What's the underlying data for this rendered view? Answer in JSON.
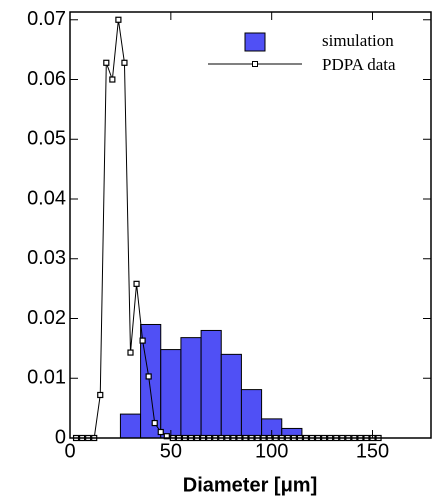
{
  "chart_data": {
    "type": "histogram",
    "xlabel": "Diameter  [μm]",
    "bins": [
      25,
      35,
      45,
      55,
      65,
      75,
      85,
      95,
      105,
      115
    ],
    "series": [
      {
        "name": "simulation",
        "color": "#5050f5",
        "values": [
          0.004,
          0.019,
          0.0148,
          0.0168,
          0.018,
          0.014,
          0.0081,
          0.0032,
          0.0016
        ]
      }
    ],
    "overlay": {
      "type": "line",
      "name": "PDPA data",
      "color": "#000000",
      "x": [
        3,
        6,
        9,
        12,
        15,
        18,
        21,
        24,
        27,
        30,
        33,
        36,
        39,
        42,
        45,
        48,
        51,
        54,
        57,
        60,
        63,
        66,
        69,
        72,
        75,
        78,
        81,
        84,
        87,
        90,
        93,
        96,
        99,
        102,
        105,
        108,
        111,
        114,
        117,
        120,
        123,
        126,
        129,
        132,
        135,
        138,
        141,
        144,
        147,
        150,
        153
      ],
      "values": [
        0,
        0,
        0,
        0,
        0.0072,
        0.0628,
        0.06,
        0.07,
        0.0628,
        0.0143,
        0.0258,
        0.0163,
        0.0103,
        0.0025,
        0.001,
        0.0003,
        0,
        0,
        0,
        0,
        0,
        0,
        0,
        0,
        0,
        0,
        0,
        0,
        0,
        0,
        0,
        0,
        0,
        0,
        0,
        0,
        0,
        0,
        0,
        0,
        0,
        0,
        0,
        0,
        0,
        0,
        0,
        0,
        0,
        0,
        0
      ]
    },
    "xlim": [
      0,
      179
    ],
    "ylim": [
      0,
      0.0713
    ],
    "xticks": [
      0,
      50,
      100,
      150
    ],
    "yticks": [
      0,
      0.01,
      0.02,
      0.03,
      0.04,
      0.05,
      0.06,
      0.07
    ],
    "legend": "upper right"
  }
}
